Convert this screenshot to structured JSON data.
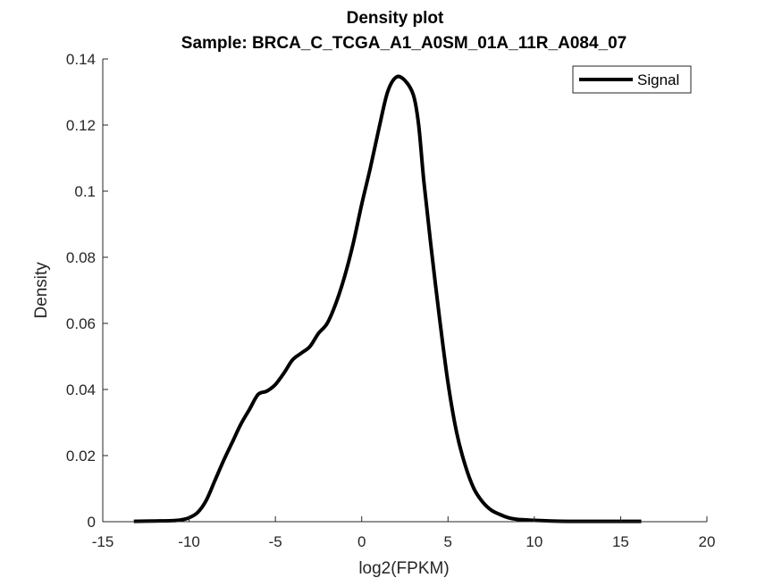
{
  "chart_data": {
    "type": "line",
    "title": "Density plot",
    "subtitle": "Sample: BRCA_C_TCGA_A1_A0SM_01A_11R_A084_07",
    "xlabel": "log2(FPKM)",
    "ylabel": "Density",
    "xlim": [
      -15,
      20
    ],
    "ylim": [
      0,
      0.14
    ],
    "x_ticks": [
      -15,
      -10,
      -5,
      0,
      5,
      10,
      15,
      20
    ],
    "x_tick_labels": [
      "-15",
      "-10",
      "-5",
      "0",
      "5",
      "10",
      "15",
      "20"
    ],
    "y_ticks": [
      0,
      0.02,
      0.04,
      0.06,
      0.08,
      0.1,
      0.12,
      0.14
    ],
    "y_tick_labels": [
      "0",
      "0.02",
      "0.04",
      "0.06",
      "0.08",
      "0.1",
      "0.12",
      "0.14"
    ],
    "grid": false,
    "legend_position": "top-right",
    "series": [
      {
        "name": "Signal",
        "color": "#000000",
        "x": [
          -13.2,
          -12,
          -11,
          -10.5,
          -10,
          -9.5,
          -9,
          -8.5,
          -8,
          -7.5,
          -7,
          -6.5,
          -6,
          -5.5,
          -5,
          -4.5,
          -4,
          -3.5,
          -3,
          -2.5,
          -2,
          -1.5,
          -1,
          -0.5,
          0,
          0.5,
          1,
          1.5,
          2,
          2.5,
          3,
          3.3,
          3.6,
          4,
          4.5,
          5,
          5.5,
          6,
          6.5,
          7,
          7.5,
          8,
          8.5,
          9,
          10,
          11,
          12,
          13,
          14,
          15,
          16.2
        ],
        "y": [
          0.0001,
          0.0002,
          0.0003,
          0.0005,
          0.0012,
          0.0028,
          0.0065,
          0.0125,
          0.0185,
          0.024,
          0.0295,
          0.034,
          0.0385,
          0.0395,
          0.0415,
          0.045,
          0.049,
          0.051,
          0.053,
          0.057,
          0.06,
          0.066,
          0.074,
          0.084,
          0.096,
          0.107,
          0.119,
          0.13,
          0.1345,
          0.1335,
          0.129,
          0.12,
          0.103,
          0.084,
          0.062,
          0.042,
          0.027,
          0.017,
          0.01,
          0.006,
          0.0035,
          0.0022,
          0.0012,
          0.0007,
          0.0004,
          0.0002,
          0.0001,
          0.0001,
          0.0001,
          0.0001,
          0.0001
        ]
      }
    ]
  }
}
